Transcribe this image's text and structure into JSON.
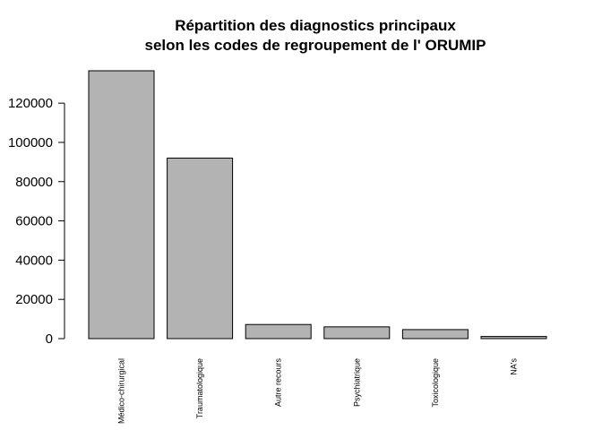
{
  "chart_data": {
    "type": "bar",
    "title_lines": [
      "Répartition des diagnostics principaux",
      "selon les codes de regroupement de l' ORUMIP"
    ],
    "xlabel": "",
    "ylabel": "",
    "categories": [
      "Médico-chirurgical",
      "Traumatologique",
      "Autre recours",
      "Psychiatrique",
      "Toxicologique",
      "NA's"
    ],
    "values": [
      136500,
      92000,
      7200,
      6000,
      4600,
      1100
    ],
    "ylim": [
      0,
      136500
    ],
    "yticks": [
      0,
      20000,
      40000,
      60000,
      80000,
      100000,
      120000
    ],
    "bar_color": "#b3b3b3",
    "grid": false,
    "legend": "none"
  }
}
